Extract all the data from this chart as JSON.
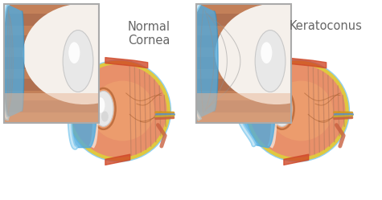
{
  "bg_color": "#ffffff",
  "title_normal": "Normal\nCornea",
  "title_keratoconus": "Keratoconus",
  "title_color": "#666666",
  "title_fontsize": 10.5,
  "eye_orange_light": "#f0a870",
  "eye_orange": "#e8906a",
  "eye_orange_dark": "#c07040",
  "eye_orange_darker": "#a05828",
  "eye_sclera": "#f5f0eb",
  "eye_blue_dark": "#3090c8",
  "eye_blue": "#50aade",
  "eye_blue_light": "#90d0f0",
  "eye_blue_lightest": "#c8eaf8",
  "eye_white": "#f0f0f0",
  "eye_lens_white": "#e8e8e8",
  "eye_yellow": "#e0c840",
  "eye_red": "#d04828",
  "eye_red2": "#c86040",
  "eye_brown": "#b07050",
  "eye_brown_dark": "#986040",
  "eye_gold": "#d09820",
  "eye_nerve_yellow": "#c8a830",
  "eye_nerve_blue": "#6090b8",
  "box_edge": "#aaaaaa",
  "stripe_color": "#c08060"
}
